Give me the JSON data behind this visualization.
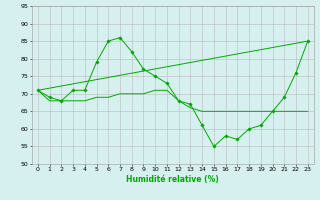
{
  "xlabel": "Humidité relative (%)",
  "bg_color": "#d6f0f0",
  "grid_color": "#bbbbbb",
  "line_color": "#00aa00",
  "xlim": [
    -0.5,
    23.5
  ],
  "ylim": [
    50,
    95
  ],
  "yticks": [
    50,
    55,
    60,
    65,
    70,
    75,
    80,
    85,
    90,
    95
  ],
  "xticks": [
    0,
    1,
    2,
    3,
    4,
    5,
    6,
    7,
    8,
    9,
    10,
    11,
    12,
    13,
    14,
    15,
    16,
    17,
    18,
    19,
    20,
    21,
    22,
    23
  ],
  "line1_x": [
    0,
    1,
    2,
    3,
    4,
    5,
    6,
    7,
    8,
    9,
    10,
    11,
    12,
    13,
    14,
    15,
    16,
    17,
    18,
    19,
    20,
    21,
    22,
    23
  ],
  "line1_y": [
    71,
    69,
    68,
    71,
    71,
    79,
    85,
    86,
    82,
    77,
    75,
    73,
    68,
    67,
    61,
    55,
    58,
    57,
    60,
    61,
    65,
    69,
    76,
    85
  ],
  "line2_x": [
    0,
    1,
    2,
    3,
    4,
    5,
    6,
    7,
    8,
    9,
    10,
    11,
    12,
    13,
    14,
    15,
    16,
    17,
    18,
    19,
    20,
    21,
    22,
    23
  ],
  "line2_y": [
    71,
    68,
    68,
    68,
    68,
    69,
    69,
    70,
    70,
    70,
    71,
    71,
    68,
    66,
    65,
    65,
    65,
    65,
    65,
    65,
    65,
    65,
    65,
    65
  ],
  "line3_x": [
    0,
    23
  ],
  "line3_y": [
    71,
    85
  ]
}
